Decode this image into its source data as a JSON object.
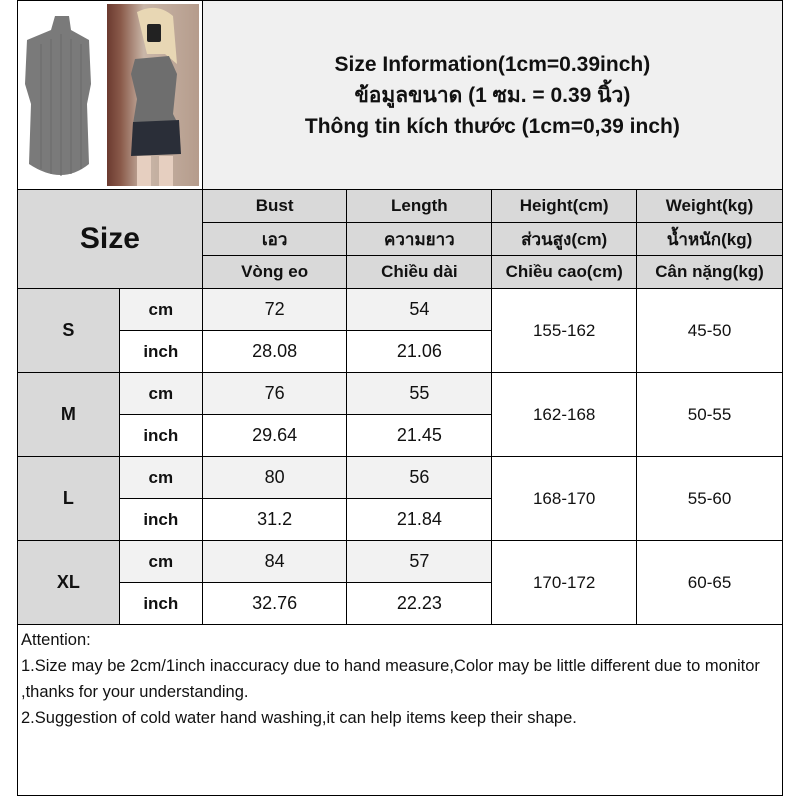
{
  "title": {
    "line1": "Size Information(1cm=0.39inch)",
    "line2": "ข้อมูลขนาด (1 ซม. = 0.39 นิ้ว)",
    "line3": "Thông tin kích thước (1cm=0,39 inch)"
  },
  "header": {
    "size": "Size",
    "columns": [
      {
        "en": "Bust",
        "th": "เอว",
        "vi": "Vòng eo"
      },
      {
        "en": "Length",
        "th": "ความยาว",
        "vi": "Chiều dài"
      },
      {
        "en": "Height(cm)",
        "th": "ส่วนสูง(cm)",
        "vi": "Chiều cao(cm)"
      },
      {
        "en": "Weight(kg)",
        "th": "น้ำหนัก(kg)",
        "vi": "Cân nặng(kg)"
      }
    ]
  },
  "rows": [
    {
      "size": "S",
      "cm_label": "cm",
      "inch_label": "inch",
      "bust_cm": "72",
      "length_cm": "54",
      "bust_inch": "28.08",
      "length_inch": "21.06",
      "height": "155-162",
      "weight": "45-50"
    },
    {
      "size": "M",
      "cm_label": "cm",
      "inch_label": "inch",
      "bust_cm": "76",
      "length_cm": "55",
      "bust_inch": "29.64",
      "length_inch": "21.45",
      "height": "162-168",
      "weight": "50-55"
    },
    {
      "size": "L",
      "cm_label": "cm",
      "inch_label": "inch",
      "bust_cm": "80",
      "length_cm": "56",
      "bust_inch": "31.2",
      "length_inch": "21.84",
      "height": "168-170",
      "weight": "55-60"
    },
    {
      "size": "XL",
      "cm_label": "cm",
      "inch_label": "inch",
      "bust_cm": "84",
      "length_cm": "57",
      "bust_inch": "32.76",
      "length_inch": "22.23",
      "height": "170-172",
      "weight": "60-65"
    }
  ],
  "attention": {
    "heading": "Attention:",
    "note1": "1.Size may be 2cm/1inch inaccuracy due to hand measure,Color may be little different due to monitor ,thanks for your understanding.",
    "note2": "2.Suggestion of cold water hand washing,it can help items keep their shape."
  }
}
